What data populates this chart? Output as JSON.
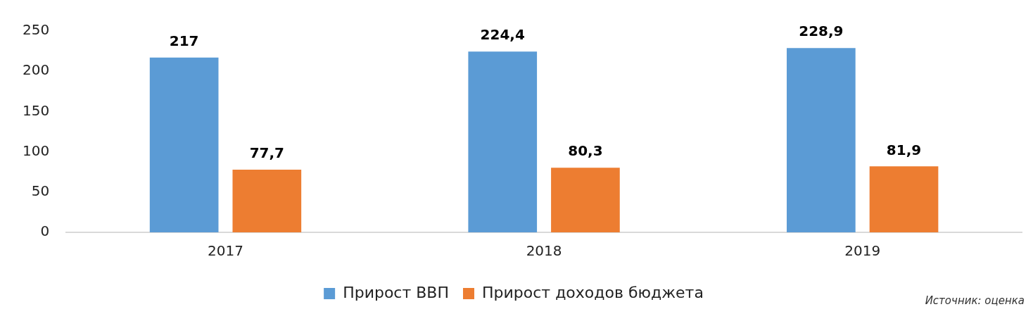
{
  "chart_data": {
    "type": "bar",
    "categories": [
      "2017",
      "2018",
      "2019"
    ],
    "series": [
      {
        "name": "Прирост ВВП",
        "color": "#5b9bd5",
        "values": [
          217,
          224.4,
          228.9
        ],
        "value_labels": [
          "217",
          "224,4",
          "228,9"
        ]
      },
      {
        "name": "Прирост доходов бюджета",
        "color": "#ed7d31",
        "values": [
          77.7,
          80.3,
          81.9
        ],
        "value_labels": [
          "77,7",
          "80,3",
          "81,9"
        ]
      }
    ],
    "ylim": [
      0,
      250
    ],
    "yticks": [
      0,
      50,
      100,
      150,
      200,
      250
    ],
    "grid": false,
    "legend": "bottom",
    "annotations": [
      "Источник: оценка"
    ]
  }
}
